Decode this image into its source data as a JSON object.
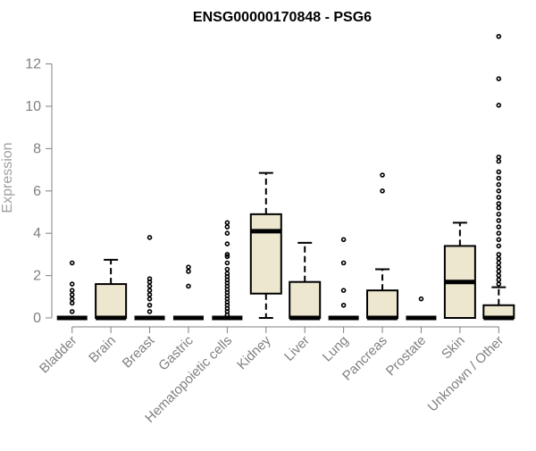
{
  "chart_data": {
    "type": "box",
    "title": "ENSG00000170848 - PSG6",
    "xlabel": "",
    "ylabel": "Expression",
    "ylim": [
      -0.5,
      13.2
    ],
    "yticks": [
      0,
      2,
      4,
      6,
      8,
      10,
      12
    ],
    "grid": false,
    "legend": "none",
    "colors": {
      "box_fill": "#ede7d0",
      "stroke": "#000000",
      "axis": "#808080"
    },
    "categories": [
      "Bladder",
      "Brain",
      "Breast",
      "Gastric",
      "Hematopoietic cells",
      "Kidney",
      "Liver",
      "Lung",
      "Pancreas",
      "Prostate",
      "Skin",
      "Unknown / Other"
    ],
    "boxes": [
      {
        "category": "Bladder",
        "q1": 0,
        "median": 0,
        "q3": 0,
        "whisker_low": 0,
        "whisker_high": 0,
        "outliers": [
          0.3,
          0.7,
          0.9,
          1.1,
          1.3,
          1.6,
          2.6
        ]
      },
      {
        "category": "Brain",
        "q1": 0,
        "median": 0,
        "q3": 1.6,
        "whisker_low": 0,
        "whisker_high": 2.75,
        "outliers": []
      },
      {
        "category": "Breast",
        "q1": 0,
        "median": 0,
        "q3": 0,
        "whisker_low": 0,
        "whisker_high": 0,
        "outliers": [
          0.3,
          0.6,
          0.9,
          1.1,
          1.3,
          1.5,
          1.7,
          1.85,
          3.8
        ]
      },
      {
        "category": "Gastric",
        "q1": 0,
        "median": 0,
        "q3": 0,
        "whisker_low": 0,
        "whisker_high": 0,
        "outliers": [
          1.5,
          2.2,
          2.4
        ]
      },
      {
        "category": "Hematopoietic cells",
        "q1": 0,
        "median": 0,
        "q3": 0,
        "whisker_low": 0,
        "whisker_high": 0,
        "outliers": [
          0.15,
          0.3,
          0.45,
          0.6,
          0.75,
          0.9,
          1.05,
          1.2,
          1.35,
          1.5,
          1.65,
          1.8,
          1.95,
          2.1,
          2.3,
          2.6,
          2.9,
          3.0,
          3.5,
          4.0,
          4.3,
          4.5
        ]
      },
      {
        "category": "Kidney",
        "q1": 1.15,
        "median": 4.1,
        "q3": 4.9,
        "whisker_low": 0,
        "whisker_high": 6.85,
        "outliers": []
      },
      {
        "category": "Liver",
        "q1": 0,
        "median": 0,
        "q3": 1.7,
        "whisker_low": 0,
        "whisker_high": 3.55,
        "outliers": []
      },
      {
        "category": "Lung",
        "q1": 0,
        "median": 0,
        "q3": 0,
        "whisker_low": 0,
        "whisker_high": 0,
        "outliers": [
          0.6,
          1.3,
          2.6,
          3.7
        ]
      },
      {
        "category": "Pancreas",
        "q1": 0,
        "median": 0,
        "q3": 1.3,
        "whisker_low": 0,
        "whisker_high": 2.3,
        "outliers": [
          6.0,
          6.75
        ]
      },
      {
        "category": "Prostate",
        "q1": 0,
        "median": 0,
        "q3": 0,
        "whisker_low": 0,
        "whisker_high": 0,
        "outliers": [
          0.9
        ]
      },
      {
        "category": "Skin",
        "q1": 0,
        "median": 1.7,
        "q3": 3.4,
        "whisker_low": 0,
        "whisker_high": 4.5,
        "outliers": []
      },
      {
        "category": "Unknown / Other",
        "q1": 0,
        "median": 0,
        "q3": 0.6,
        "whisker_low": 0,
        "whisker_high": 1.45,
        "outliers": [
          1.6,
          1.8,
          2.0,
          2.2,
          2.4,
          2.6,
          2.8,
          3.0,
          3.4,
          3.7,
          4.0,
          4.3,
          4.6,
          4.9,
          5.2,
          5.4,
          5.7,
          6.0,
          6.3,
          6.6,
          6.9,
          7.4,
          7.6,
          10.05,
          11.3,
          13.3
        ]
      }
    ]
  }
}
